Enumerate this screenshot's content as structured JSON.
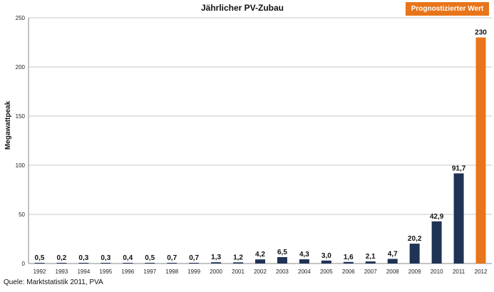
{
  "chart_data": {
    "type": "bar",
    "title": "Jährlicher PV-Zubau",
    "ylabel": "Megawattpeak",
    "xlabel": "",
    "ylim": [
      0,
      250
    ],
    "yticks": [
      0,
      50,
      100,
      150,
      200,
      250
    ],
    "grid": true,
    "categories": [
      "1992",
      "1993",
      "1994",
      "1995",
      "1996",
      "1997",
      "1998",
      "1999",
      "2000",
      "2001",
      "2002",
      "2003",
      "2004",
      "2005",
      "2006",
      "2007",
      "2008",
      "2009",
      "2010",
      "2011",
      "2012"
    ],
    "values": [
      0.5,
      0.2,
      0.3,
      0.3,
      0.4,
      0.5,
      0.7,
      0.7,
      1.3,
      1.2,
      4.2,
      6.5,
      4.3,
      3.0,
      1.6,
      2.1,
      4.7,
      20.2,
      42.9,
      91.7,
      230
    ],
    "data_labels": [
      "0,5",
      "0,2",
      "0,3",
      "0,3",
      "0,4",
      "0,5",
      "0,7",
      "0,7",
      "1,3",
      "1,2",
      "4,2",
      "6,5",
      "4,3",
      "3,0",
      "1,6",
      "2,1",
      "4,7",
      "20,2",
      "42,9",
      "91,7",
      "230"
    ],
    "forecast": [
      false,
      false,
      false,
      false,
      false,
      false,
      false,
      false,
      false,
      false,
      false,
      false,
      false,
      false,
      false,
      false,
      false,
      false,
      false,
      false,
      true
    ],
    "legend": {
      "label": "Prognostizierter Wert",
      "placement": "top-right"
    },
    "colors": {
      "actual": "#1f3355",
      "forecast": "#e8751a",
      "grid": "#c8c8c8"
    }
  },
  "source": "Quele: Marktstatistik 2011, PVA"
}
